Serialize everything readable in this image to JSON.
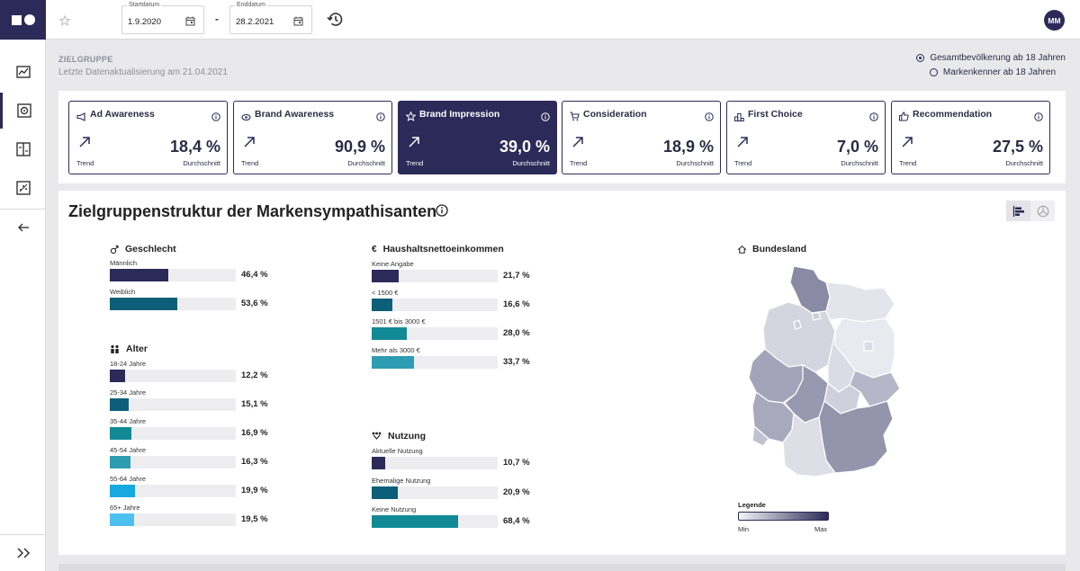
{
  "topbar": {
    "start_label": "Startdatum",
    "start_value": "1.9.2020",
    "end_label": "Enddatum",
    "end_value": "28.2.2021",
    "separator": "-",
    "avatar": "MM"
  },
  "header": {
    "title": "ZIELGRUPPE",
    "subtitle": "Letzte Datenaktualisierung am 21.04.2021",
    "options": [
      {
        "label": "Gesamtbevölkerung ab 18 Jahren",
        "selected": true
      },
      {
        "label": "Markenkenner ab 18 Jahren",
        "selected": false
      }
    ]
  },
  "kpis": [
    {
      "title": "Ad Awareness",
      "value": "18,4 %",
      "trend": "Trend",
      "avg": "Durchschnitt",
      "icon": "megaphone-icon",
      "active": false
    },
    {
      "title": "Brand Awareness",
      "value": "90,9 %",
      "trend": "Trend",
      "avg": "Durchschnitt",
      "icon": "eye-icon",
      "active": false
    },
    {
      "title": "Brand Impression",
      "value": "39,0 %",
      "trend": "Trend",
      "avg": "Durchschnitt",
      "icon": "star-icon",
      "active": true
    },
    {
      "title": "Consideration",
      "value": "18,9 %",
      "trend": "Trend",
      "avg": "Durchschnitt",
      "icon": "cart-icon",
      "active": false
    },
    {
      "title": "First Choice",
      "value": "7,0 %",
      "trend": "Trend",
      "avg": "Durchschnitt",
      "icon": "podium-icon",
      "active": false
    },
    {
      "title": "Recommendation",
      "value": "27,5 %",
      "trend": "Trend",
      "avg": "Durchschnitt",
      "icon": "thumbs-up-icon",
      "active": false
    }
  ],
  "main": {
    "title": "Zielgruppenstruktur der Markensympathisanten",
    "geschlecht": {
      "title": "Geschlecht",
      "items": [
        {
          "label": "Männlich",
          "value": "46,4 %",
          "pct": 46.4,
          "color": "#2b2a58"
        },
        {
          "label": "Weiblich",
          "value": "53,6 %",
          "pct": 53.6,
          "color": "#0d5e78"
        }
      ]
    },
    "alter": {
      "title": "Alter",
      "items": [
        {
          "label": "18-24 Jahre",
          "value": "12,2 %",
          "pct": 12.2,
          "color": "#2b2a58"
        },
        {
          "label": "25-34 Jahre",
          "value": "15,1 %",
          "pct": 15.1,
          "color": "#0d5e78"
        },
        {
          "label": "35-44 Jahre",
          "value": "16,9 %",
          "pct": 16.9,
          "color": "#128a96"
        },
        {
          "label": "45-54 Jahre",
          "value": "16,3 %",
          "pct": 16.3,
          "color": "#2e9cb3"
        },
        {
          "label": "55-64 Jahre",
          "value": "19,9 %",
          "pct": 19.9,
          "color": "#18a9e0"
        },
        {
          "label": "65+ Jahre",
          "value": "19,5 %",
          "pct": 19.5,
          "color": "#4cc1f0"
        }
      ]
    },
    "einkommen": {
      "title": "Haushaltsnettoeinkommen",
      "items": [
        {
          "label": "Keine Angabe",
          "value": "21,7 %",
          "pct": 21.7,
          "color": "#2b2a58"
        },
        {
          "label": "< 1500 €",
          "value": "16,6 %",
          "pct": 16.6,
          "color": "#0d5e78"
        },
        {
          "label": "1501 € bis 3000 €",
          "value": "28,0 %",
          "pct": 28.0,
          "color": "#128a96"
        },
        {
          "label": "Mehr als 3000 €",
          "value": "33,7 %",
          "pct": 33.7,
          "color": "#2e9cb3"
        }
      ]
    },
    "nutzung": {
      "title": "Nutzung",
      "items": [
        {
          "label": "Aktuelle Nutzung",
          "value": "10,7 %",
          "pct": 10.7,
          "color": "#2b2a58"
        },
        {
          "label": "Ehemalige Nutzung",
          "value": "20,9 %",
          "pct": 20.9,
          "color": "#0d5e78"
        },
        {
          "label": "Keine Nutzung",
          "value": "68,4 %",
          "pct": 68.4,
          "color": "#128a96"
        }
      ]
    },
    "bundesland": {
      "title": "Bundesland",
      "legend_title": "Legende",
      "legend_min": "Min",
      "legend_max": "Max"
    }
  }
}
